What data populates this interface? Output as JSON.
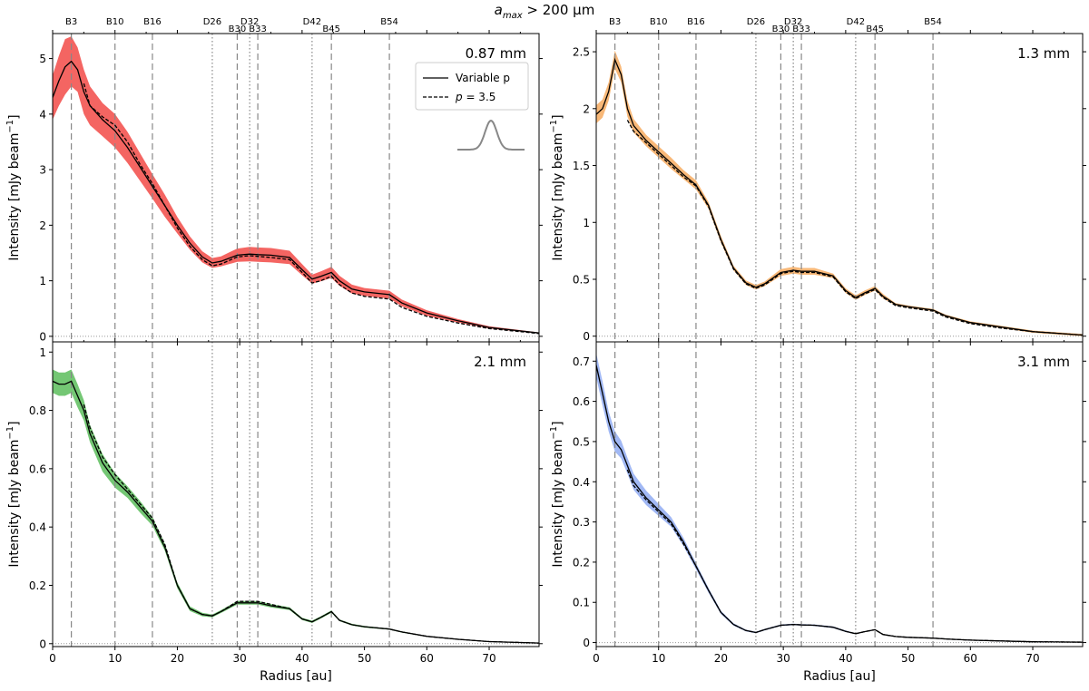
{
  "figure_title": "a_max > 200 µm",
  "title_parts": {
    "a": "a",
    "sub": "max",
    "rest": " > 200 µm"
  },
  "legend": {
    "solid": "Variable p",
    "dashed_prefix": "p",
    "dashed_suffix": " = 3.5"
  },
  "xlabel": "Radius [au]",
  "ylabel": "Intensity [mJy beam",
  "ylabel_sup": "−1",
  "ylabel_close": "]",
  "xlim": [
    0,
    78
  ],
  "xticks": [
    0,
    10,
    20,
    30,
    40,
    50,
    60,
    70
  ],
  "feature_lines": [
    {
      "label": "B3",
      "x": 3.0,
      "style": "dashed"
    },
    {
      "label": "B10",
      "x": 10.0,
      "style": "dashed"
    },
    {
      "label": "B16",
      "x": 16.0,
      "style": "dashed"
    },
    {
      "label": "D26",
      "x": 25.6,
      "style": "dotted"
    },
    {
      "label": "B30",
      "x": 29.6,
      "style": "dashed"
    },
    {
      "label": "D32",
      "x": 31.6,
      "style": "dotted"
    },
    {
      "label": "B33",
      "x": 32.9,
      "style": "dashed"
    },
    {
      "label": "D42",
      "x": 41.6,
      "style": "dotted"
    },
    {
      "label": "B45",
      "x": 44.7,
      "style": "dashed"
    },
    {
      "label": "B54",
      "x": 54.0,
      "style": "dashed"
    }
  ],
  "colors": {
    "0.87 mm": "#f0322d",
    "1.3 mm": "#f5a04b",
    "2.1 mm": "#46b446",
    "3.1 mm": "#82a0f0"
  },
  "chart_data": [
    {
      "type": "line",
      "panel_label": "0.87 mm",
      "color": "#f0322d",
      "ylim": [
        -0.1,
        5.45
      ],
      "yticks": [
        0,
        1,
        2,
        3,
        4,
        5
      ],
      "x": [
        0,
        1,
        2,
        3,
        4,
        5,
        6,
        8,
        10,
        12,
        14,
        16,
        18,
        20,
        22,
        24,
        25.6,
        27,
        29.6,
        31.6,
        32.9,
        35,
        38,
        40,
        41.6,
        43,
        44.7,
        46,
        48,
        50,
        54,
        56,
        60,
        65,
        70,
        78
      ],
      "series": [
        {
          "name": "Variable p",
          "values": [
            4.3,
            4.6,
            4.85,
            4.95,
            4.8,
            4.4,
            4.15,
            3.9,
            3.7,
            3.4,
            3.05,
            2.7,
            2.35,
            2.0,
            1.68,
            1.43,
            1.32,
            1.35,
            1.46,
            1.48,
            1.47,
            1.46,
            1.42,
            1.2,
            1.03,
            1.08,
            1.15,
            1.0,
            0.85,
            0.8,
            0.75,
            0.6,
            0.42,
            0.28,
            0.16,
            0.06
          ]
        },
        {
          "name": "p = 3.5",
          "values": [
            null,
            null,
            null,
            null,
            null,
            4.55,
            4.15,
            3.95,
            3.8,
            3.5,
            3.1,
            2.75,
            2.35,
            1.95,
            1.62,
            1.38,
            1.27,
            1.3,
            1.43,
            1.45,
            1.44,
            1.42,
            1.38,
            1.15,
            0.96,
            1.0,
            1.08,
            0.93,
            0.78,
            0.72,
            0.67,
            0.52,
            0.36,
            0.24,
            0.14,
            0.05
          ]
        }
      ],
      "band_half_width": [
        0.4,
        0.45,
        0.5,
        0.45,
        0.4,
        0.4,
        0.35,
        0.3,
        0.3,
        0.28,
        0.25,
        0.22,
        0.2,
        0.15,
        0.12,
        0.1,
        0.09,
        0.09,
        0.12,
        0.13,
        0.13,
        0.13,
        0.12,
        0.1,
        0.08,
        0.09,
        0.1,
        0.09,
        0.08,
        0.07,
        0.07,
        0.06,
        0.05,
        0.03,
        0.02,
        0.01
      ]
    },
    {
      "type": "line",
      "panel_label": "1.3 mm",
      "color": "#f5a04b",
      "ylim": [
        -0.05,
        2.66
      ],
      "yticks": [
        0,
        0.5,
        1.0,
        1.5,
        2.0,
        2.5
      ],
      "x": [
        0,
        1,
        2,
        3,
        4,
        5,
        6,
        8,
        10,
        12,
        14,
        16,
        18,
        20,
        22,
        24,
        25.6,
        27,
        29.6,
        31.6,
        32.9,
        35,
        38,
        40,
        41.6,
        43,
        44.7,
        46,
        48,
        50,
        54,
        56,
        60,
        65,
        70,
        78
      ],
      "series": [
        {
          "name": "Variable p",
          "values": [
            1.95,
            2.0,
            2.15,
            2.43,
            2.3,
            2.0,
            1.85,
            1.72,
            1.62,
            1.52,
            1.42,
            1.33,
            1.15,
            0.85,
            0.6,
            0.47,
            0.43,
            0.46,
            0.56,
            0.58,
            0.57,
            0.57,
            0.53,
            0.4,
            0.34,
            0.38,
            0.42,
            0.35,
            0.28,
            0.26,
            0.23,
            0.18,
            0.12,
            0.08,
            0.04,
            0.01
          ]
        },
        {
          "name": "p = 3.5",
          "values": [
            null,
            null,
            null,
            null,
            null,
            1.9,
            1.8,
            1.7,
            1.6,
            1.5,
            1.4,
            1.32,
            1.14,
            0.84,
            0.59,
            0.46,
            0.42,
            0.45,
            0.55,
            0.57,
            0.56,
            0.56,
            0.52,
            0.39,
            0.33,
            0.37,
            0.41,
            0.34,
            0.27,
            0.25,
            0.22,
            0.17,
            0.11,
            0.07,
            0.04,
            0.01
          ]
        }
      ],
      "band_half_width": [
        0.08,
        0.08,
        0.08,
        0.08,
        0.07,
        0.07,
        0.06,
        0.05,
        0.05,
        0.05,
        0.04,
        0.04,
        0.03,
        0.03,
        0.02,
        0.02,
        0.02,
        0.02,
        0.03,
        0.03,
        0.03,
        0.03,
        0.02,
        0.02,
        0.02,
        0.02,
        0.02,
        0.02,
        0.01,
        0.01,
        0.01,
        0.01,
        0.01,
        0.01,
        0.01,
        0.01
      ]
    },
    {
      "type": "line",
      "panel_label": "2.1 mm",
      "color": "#46b446",
      "ylim": [
        -0.01,
        1.035
      ],
      "yticks": [
        0,
        0.2,
        0.4,
        0.6,
        0.8,
        1.0
      ],
      "x": [
        0,
        1,
        2,
        3,
        4,
        5,
        6,
        8,
        10,
        12,
        14,
        16,
        18,
        20,
        22,
        24,
        25.6,
        27,
        29.6,
        31.6,
        32.9,
        35,
        38,
        40,
        41.6,
        43,
        44.7,
        46,
        48,
        50,
        54,
        56,
        60,
        65,
        70,
        78
      ],
      "series": [
        {
          "name": "Variable p",
          "values": [
            0.9,
            0.89,
            0.89,
            0.9,
            0.85,
            0.8,
            0.72,
            0.62,
            0.56,
            0.52,
            0.47,
            0.42,
            0.33,
            0.2,
            0.12,
            0.1,
            0.095,
            0.11,
            0.14,
            0.14,
            0.14,
            0.13,
            0.12,
            0.085,
            0.075,
            0.09,
            0.11,
            0.08,
            0.065,
            0.058,
            0.05,
            0.04,
            0.025,
            0.015,
            0.007,
            0.002
          ]
        },
        {
          "name": "p = 3.5",
          "values": [
            null,
            null,
            null,
            null,
            null,
            0.82,
            0.74,
            0.64,
            0.58,
            0.53,
            0.48,
            0.43,
            0.34,
            0.2,
            0.12,
            0.1,
            0.095,
            0.11,
            0.145,
            0.145,
            0.145,
            0.135,
            0.12,
            0.085,
            0.075,
            0.09,
            0.11,
            0.08,
            0.065,
            0.058,
            0.05,
            0.04,
            0.025,
            0.015,
            0.007,
            0.002
          ]
        }
      ],
      "band_half_width": [
        0.04,
        0.04,
        0.04,
        0.04,
        0.04,
        0.035,
        0.03,
        0.03,
        0.025,
        0.02,
        0.02,
        0.015,
        0.012,
        0.01,
        0.008,
        0.006,
        0.005,
        0.005,
        0.006,
        0.006,
        0.006,
        0.006,
        0.005,
        0.004,
        0.004,
        0.004,
        0.004,
        0.003,
        0.003,
        0.003,
        0.002,
        0.002,
        0.001,
        0.001,
        0.001,
        0.001
      ]
    },
    {
      "type": "line",
      "panel_label": "3.1 mm",
      "color": "#82a0f0",
      "ylim": [
        -0.01,
        0.748
      ],
      "yticks": [
        0,
        0.1,
        0.2,
        0.3,
        0.4,
        0.5,
        0.6,
        0.7
      ],
      "x": [
        0,
        1,
        2,
        3,
        4,
        5,
        6,
        8,
        10,
        12,
        14,
        16,
        18,
        20,
        22,
        24,
        25.6,
        27,
        29.6,
        31.6,
        32.9,
        35,
        38,
        40,
        41.6,
        43,
        44.7,
        46,
        48,
        50,
        54,
        56,
        60,
        65,
        70,
        78
      ],
      "series": [
        {
          "name": "Variable p",
          "values": [
            0.69,
            0.62,
            0.55,
            0.5,
            0.48,
            0.44,
            0.4,
            0.36,
            0.33,
            0.3,
            0.25,
            0.19,
            0.13,
            0.075,
            0.045,
            0.03,
            0.025,
            0.032,
            0.043,
            0.045,
            0.044,
            0.043,
            0.038,
            0.028,
            0.022,
            0.027,
            0.032,
            0.02,
            0.015,
            0.013,
            0.011,
            0.009,
            0.006,
            0.004,
            0.002,
            0.001
          ]
        },
        {
          "name": "p = 3.5",
          "values": [
            null,
            null,
            null,
            null,
            null,
            0.43,
            0.39,
            0.355,
            0.325,
            0.295,
            0.245,
            0.19,
            0.13,
            0.075,
            0.045,
            0.03,
            0.025,
            0.032,
            0.043,
            0.045,
            0.044,
            0.043,
            0.038,
            0.028,
            0.022,
            0.027,
            0.032,
            0.02,
            0.015,
            0.013,
            0.011,
            0.009,
            0.006,
            0.004,
            0.002,
            0.001
          ]
        }
      ],
      "band_half_width": [
        0.03,
        0.03,
        0.025,
        0.025,
        0.022,
        0.02,
        0.02,
        0.018,
        0.015,
        0.012,
        0.01,
        0.008,
        0.006,
        0.004,
        0.003,
        0.002,
        0.002,
        0.002,
        0.002,
        0.002,
        0.002,
        0.002,
        0.002,
        0.002,
        0.001,
        0.001,
        0.001,
        0.001,
        0.001,
        0.001,
        0.001,
        0.001,
        0.001,
        0.001,
        0.001,
        0.001
      ]
    }
  ]
}
